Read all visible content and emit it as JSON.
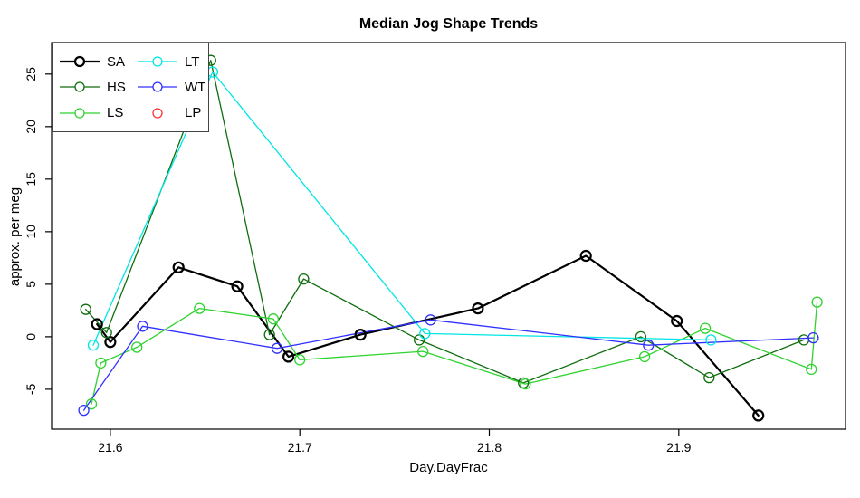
{
  "chart_data": {
    "type": "line",
    "title": "Median Jog Shape Trends",
    "xlabel": "Day.DayFrac",
    "ylabel": "approx. per meg",
    "xlim": [
      21.569,
      21.988
    ],
    "ylim": [
      -8.8,
      28.0
    ],
    "x_ticks": [
      21.6,
      21.7,
      21.8,
      21.9
    ],
    "x_tick_labels": [
      "21.6",
      "21.7",
      "21.8",
      "21.9"
    ],
    "y_ticks": [
      -5,
      0,
      5,
      10,
      15,
      20,
      25
    ],
    "y_tick_labels": [
      "-5",
      "0",
      "5",
      "10",
      "15",
      "20",
      "25"
    ],
    "grid": false,
    "legend_position": "top-left",
    "marker": "open-circle",
    "series": [
      {
        "name": "SA",
        "color": "#000000",
        "line_width": 2.2,
        "has_line": true,
        "points": [
          [
            21.593,
            1.2
          ],
          [
            21.6,
            -0.5
          ],
          [
            21.636,
            6.6
          ],
          [
            21.667,
            4.8
          ],
          [
            21.694,
            -1.9
          ],
          [
            21.732,
            0.2
          ],
          [
            21.794,
            2.7
          ],
          [
            21.851,
            7.7
          ],
          [
            21.899,
            1.5
          ],
          [
            21.942,
            -7.5
          ]
        ]
      },
      {
        "name": "HS",
        "color": "#0e6e0e",
        "line_width": 1.3,
        "has_line": true,
        "points": [
          [
            21.587,
            2.6
          ],
          [
            21.598,
            0.4
          ],
          [
            21.653,
            26.3
          ],
          [
            21.684,
            0.2
          ],
          [
            21.702,
            5.5
          ],
          [
            21.763,
            -0.3
          ],
          [
            21.818,
            -4.4
          ],
          [
            21.88,
            0.0
          ],
          [
            21.916,
            -3.9
          ],
          [
            21.966,
            -0.3
          ]
        ]
      },
      {
        "name": "LS",
        "color": "#2fd32f",
        "line_width": 1.3,
        "has_line": true,
        "points": [
          [
            21.59,
            -6.4
          ],
          [
            21.595,
            -2.5
          ],
          [
            21.614,
            -1.0
          ],
          [
            21.647,
            2.7
          ],
          [
            21.686,
            1.7
          ],
          [
            21.7,
            -2.2
          ],
          [
            21.765,
            -1.4
          ],
          [
            21.819,
            -4.5
          ],
          [
            21.882,
            -1.9
          ],
          [
            21.914,
            0.8
          ],
          [
            21.97,
            -3.1
          ],
          [
            21.973,
            3.3
          ]
        ]
      },
      {
        "name": "LT",
        "color": "#00e5e5",
        "line_width": 1.3,
        "has_line": true,
        "points": [
          [
            21.591,
            -0.8
          ],
          [
            21.654,
            25.2
          ],
          [
            21.766,
            0.3
          ],
          [
            21.917,
            -0.3
          ]
        ]
      },
      {
        "name": "WT",
        "color": "#3030ff",
        "line_width": 1.3,
        "has_line": true,
        "points": [
          [
            21.586,
            -7.0
          ],
          [
            21.617,
            1.0
          ],
          [
            21.688,
            -1.1
          ],
          [
            21.769,
            1.6
          ],
          [
            21.884,
            -0.8
          ],
          [
            21.971,
            -0.1
          ]
        ]
      },
      {
        "name": "LP",
        "color": "#ff3030",
        "line_width": 1.3,
        "has_line": false,
        "points": []
      }
    ]
  }
}
